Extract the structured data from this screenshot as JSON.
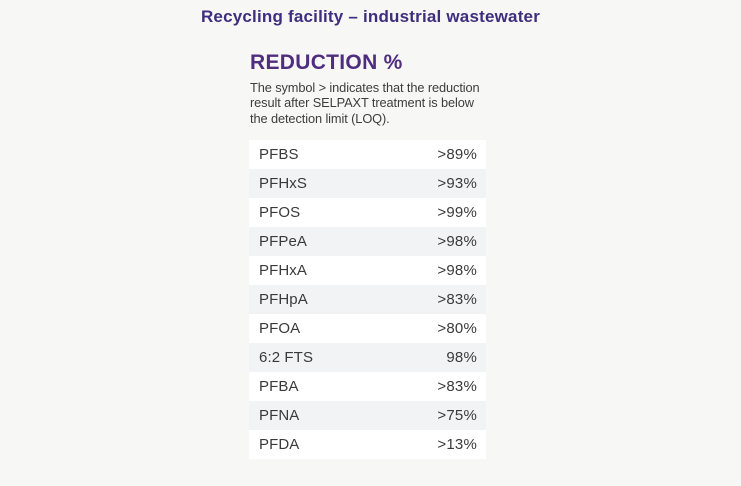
{
  "page": {
    "title": "Recycling facility – industrial wastewater",
    "background_color": "#f7f7f5"
  },
  "reduction": {
    "heading": "REDUCTION %",
    "note_lines": [
      "The symbol > indicates that the reduction",
      "result after SELPAXT treatment is below",
      "the detection limit (LOQ)."
    ]
  },
  "table": {
    "rows": [
      {
        "compound": "PFBS",
        "value": ">89%"
      },
      {
        "compound": "PFHxS",
        "value": ">93%"
      },
      {
        "compound": "PFOS",
        "value": ">99%"
      },
      {
        "compound": "PFPeA",
        "value": ">98%"
      },
      {
        "compound": "PFHxA",
        "value": ">98%"
      },
      {
        "compound": "PFHpA",
        "value": ">83%"
      },
      {
        "compound": "PFOA",
        "value": ">80%"
      },
      {
        "compound": "6:2 FTS",
        "value": "98%"
      },
      {
        "compound": "PFBA",
        "value": ">83%"
      },
      {
        "compound": "PFNA",
        "value": ">75%"
      },
      {
        "compound": "PFDA",
        "value": ">13%"
      }
    ]
  },
  "chart_data": {
    "type": "table",
    "title": "REDUCTION %",
    "subtitle": "Recycling facility – industrial wastewater",
    "note": "The symbol > indicates that the reduction result after SELPAXT treatment is below the detection limit (LOQ).",
    "categories": [
      "PFBS",
      "PFHxS",
      "PFOS",
      "PFPeA",
      "PFHxA",
      "PFHpA",
      "PFOA",
      "6:2 FTS",
      "PFBA",
      "PFNA",
      "PFDA"
    ],
    "values": [
      ">89%",
      ">93%",
      ">99%",
      ">98%",
      ">98%",
      ">83%",
      ">80%",
      "98%",
      ">83%",
      ">75%",
      ">13%"
    ],
    "values_numeric_pct": [
      89,
      93,
      99,
      98,
      98,
      83,
      80,
      98,
      83,
      75,
      13
    ],
    "below_detection_limit": [
      true,
      true,
      true,
      true,
      true,
      true,
      true,
      false,
      true,
      true,
      true
    ]
  },
  "colors": {
    "title_purple": "#3e2e7e",
    "heading_purple": "#4f2d7f",
    "body_text": "#3d3d3d",
    "row_white": "#ffffff",
    "row_alt": "#f2f3f4",
    "page_bg": "#f7f7f5"
  }
}
